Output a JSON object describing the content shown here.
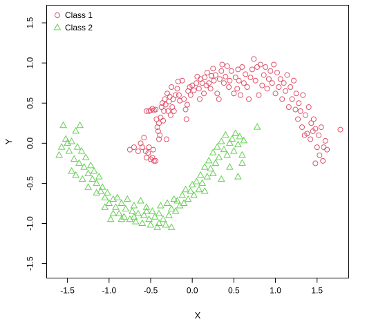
{
  "chart_data": {
    "type": "scatter",
    "xlabel": "X",
    "ylabel": "Y",
    "xlim": [
      -1.75,
      1.88
    ],
    "ylim": [
      -1.68,
      1.72
    ],
    "xticks": [
      -1.5,
      -1.0,
      -0.5,
      0.0,
      0.5,
      1.0,
      1.5
    ],
    "xtick_labels": [
      "-1.5",
      "-1.0",
      "-0.5",
      "0.0",
      "0.5",
      "1.0",
      "1.5"
    ],
    "yticks": [
      -1.5,
      -1.0,
      -0.5,
      0.0,
      0.5,
      1.0,
      1.5
    ],
    "ytick_labels": [
      "-1.5",
      "-1.0",
      "-0.5",
      "0.0",
      "0.5",
      "1.0",
      "1.5"
    ],
    "grid": false,
    "legend_position": "top-left",
    "series": [
      {
        "name": "Class 1",
        "marker": "circle",
        "color": "#DF536B",
        "points": [
          [
            -0.75,
            -0.08
          ],
          [
            -0.7,
            -0.05
          ],
          [
            -0.65,
            -0.1
          ],
          [
            -0.62,
            0.0
          ],
          [
            -0.6,
            -0.05
          ],
          [
            -0.58,
            0.07
          ],
          [
            -0.56,
            -0.1
          ],
          [
            -0.55,
            -0.18
          ],
          [
            -0.53,
            -0.12
          ],
          [
            -0.52,
            -0.05
          ],
          [
            -0.5,
            -0.2
          ],
          [
            -0.48,
            -0.18
          ],
          [
            -0.47,
            -0.08
          ],
          [
            -0.46,
            -0.22
          ],
          [
            -0.44,
            -0.22
          ],
          [
            -0.55,
            0.4
          ],
          [
            -0.52,
            0.4
          ],
          [
            -0.5,
            0.41
          ],
          [
            -0.48,
            0.43
          ],
          [
            -0.46,
            0.41
          ],
          [
            -0.44,
            0.42
          ],
          [
            -0.43,
            0.3
          ],
          [
            -0.42,
            0.2
          ],
          [
            -0.41,
            0.15
          ],
          [
            -0.4,
            0.25
          ],
          [
            -0.4,
            0.05
          ],
          [
            -0.39,
            0.1
          ],
          [
            -0.38,
            0.32
          ],
          [
            -0.37,
            0.45
          ],
          [
            -0.36,
            0.5
          ],
          [
            -0.35,
            0.28
          ],
          [
            -0.34,
            0.4
          ],
          [
            -0.33,
            0.55
          ],
          [
            -0.32,
            0.48
          ],
          [
            -0.31,
            0.05
          ],
          [
            -0.3,
            0.62
          ],
          [
            -0.29,
            0.4
          ],
          [
            -0.28,
            0.52
          ],
          [
            -0.27,
            0.58
          ],
          [
            -0.26,
            0.35
          ],
          [
            -0.25,
            0.7
          ],
          [
            -0.24,
            0.45
          ],
          [
            -0.23,
            0.55
          ],
          [
            -0.22,
            0.4
          ],
          [
            -0.2,
            0.6
          ],
          [
            -0.18,
            0.68
          ],
          [
            -0.17,
            0.77
          ],
          [
            -0.16,
            0.6
          ],
          [
            -0.15,
            0.53
          ],
          [
            -0.12,
            0.78
          ],
          [
            -0.1,
            0.55
          ],
          [
            -0.08,
            0.42
          ],
          [
            -0.07,
            0.3
          ],
          [
            -0.06,
            0.48
          ],
          [
            -0.05,
            0.65
          ],
          [
            -0.03,
            0.7
          ],
          [
            -0.02,
            0.6
          ],
          [
            0.0,
            0.72
          ],
          [
            0.02,
            0.66
          ],
          [
            0.05,
            0.75
          ],
          [
            0.06,
            0.83
          ],
          [
            0.08,
            0.68
          ],
          [
            0.09,
            0.55
          ],
          [
            0.1,
            0.8
          ],
          [
            0.12,
            0.75
          ],
          [
            0.14,
            0.62
          ],
          [
            0.15,
            0.82
          ],
          [
            0.17,
            0.72
          ],
          [
            0.18,
            0.88
          ],
          [
            0.2,
            0.75
          ],
          [
            0.22,
            0.68
          ],
          [
            0.23,
            0.84
          ],
          [
            0.25,
            0.93
          ],
          [
            0.26,
            0.78
          ],
          [
            0.28,
            0.85
          ],
          [
            0.3,
            0.62
          ],
          [
            0.32,
            0.55
          ],
          [
            0.33,
            0.8
          ],
          [
            0.35,
            0.9
          ],
          [
            0.36,
            0.98
          ],
          [
            0.38,
            0.75
          ],
          [
            0.4,
            0.83
          ],
          [
            0.42,
            0.96
          ],
          [
            0.44,
            0.7
          ],
          [
            0.45,
            0.78
          ],
          [
            0.47,
            0.9
          ],
          [
            0.5,
            0.62
          ],
          [
            0.52,
            0.82
          ],
          [
            0.54,
            0.68
          ],
          [
            0.55,
            0.92
          ],
          [
            0.56,
            0.78
          ],
          [
            0.58,
            0.6
          ],
          [
            0.6,
            0.95
          ],
          [
            0.62,
            0.75
          ],
          [
            0.64,
            0.86
          ],
          [
            0.66,
            0.7
          ],
          [
            0.68,
            0.55
          ],
          [
            0.7,
            0.82
          ],
          [
            0.72,
            0.92
          ],
          [
            0.74,
            1.05
          ],
          [
            0.76,
            0.78
          ],
          [
            0.78,
            0.95
          ],
          [
            0.8,
            0.6
          ],
          [
            0.82,
            0.98
          ],
          [
            0.84,
            0.72
          ],
          [
            0.86,
            0.85
          ],
          [
            0.88,
            0.95
          ],
          [
            0.9,
            0.68
          ],
          [
            0.92,
            0.8
          ],
          [
            0.94,
            0.9
          ],
          [
            0.96,
            0.75
          ],
          [
            0.98,
            0.98
          ],
          [
            1.0,
            0.62
          ],
          [
            1.02,
            0.88
          ],
          [
            1.04,
            0.7
          ],
          [
            1.06,
            0.8
          ],
          [
            1.08,
            0.55
          ],
          [
            1.1,
            0.75
          ],
          [
            1.12,
            0.65
          ],
          [
            1.14,
            0.85
          ],
          [
            1.16,
            0.45
          ],
          [
            1.18,
            0.7
          ],
          [
            1.2,
            0.55
          ],
          [
            1.22,
            0.78
          ],
          [
            1.24,
            0.42
          ],
          [
            1.25,
            0.62
          ],
          [
            1.27,
            0.3
          ],
          [
            1.28,
            0.5
          ],
          [
            1.3,
            0.4
          ],
          [
            1.32,
            0.2
          ],
          [
            1.33,
            0.6
          ],
          [
            1.35,
            0.1
          ],
          [
            1.36,
            0.35
          ],
          [
            1.38,
            0.12
          ],
          [
            1.4,
            0.45
          ],
          [
            1.42,
            0.05
          ],
          [
            1.43,
            0.25
          ],
          [
            1.45,
            0.15
          ],
          [
            1.46,
            0.3
          ],
          [
            1.48,
            0.18
          ],
          [
            1.5,
            -0.05
          ],
          [
            1.52,
            0.1
          ],
          [
            1.53,
            -0.15
          ],
          [
            1.55,
            0.2
          ],
          [
            1.57,
            -0.22
          ],
          [
            1.58,
            -0.05
          ],
          [
            1.6,
            0.03
          ],
          [
            1.62,
            -0.08
          ],
          [
            1.78,
            0.17
          ],
          [
            1.48,
            -0.25
          ]
        ]
      },
      {
        "name": "Class 2",
        "marker": "triangle",
        "color": "#61D04F",
        "points": [
          [
            -1.55,
            0.22
          ],
          [
            -1.52,
            0.05
          ],
          [
            -1.5,
            0.0
          ],
          [
            -1.48,
            -0.1
          ],
          [
            -1.45,
            0.02
          ],
          [
            -1.42,
            -0.2
          ],
          [
            -1.4,
            0.15
          ],
          [
            -1.38,
            -0.05
          ],
          [
            -1.36,
            -0.25
          ],
          [
            -1.35,
            0.22
          ],
          [
            -1.33,
            -0.1
          ],
          [
            -1.3,
            -0.3
          ],
          [
            -1.28,
            -0.18
          ],
          [
            -1.25,
            -0.38
          ],
          [
            -1.22,
            -0.28
          ],
          [
            -1.2,
            -0.45
          ],
          [
            -1.18,
            -0.35
          ],
          [
            -1.15,
            -0.5
          ],
          [
            -1.12,
            -0.42
          ],
          [
            -1.1,
            -0.6
          ],
          [
            -1.08,
            -0.55
          ],
          [
            -1.05,
            -0.68
          ],
          [
            -1.02,
            -0.62
          ],
          [
            -1.0,
            -0.75
          ],
          [
            -0.98,
            -0.95
          ],
          [
            -0.95,
            -0.7
          ],
          [
            -0.92,
            -0.8
          ],
          [
            -0.9,
            -0.68
          ],
          [
            -0.88,
            -0.88
          ],
          [
            -0.85,
            -0.75
          ],
          [
            -0.82,
            -0.92
          ],
          [
            -0.8,
            -0.82
          ],
          [
            -0.78,
            -0.7
          ],
          [
            -0.75,
            -0.95
          ],
          [
            -0.72,
            -0.85
          ],
          [
            -0.7,
            -0.78
          ],
          [
            -0.68,
            -0.98
          ],
          [
            -0.65,
            -0.88
          ],
          [
            -0.62,
            -0.72
          ],
          [
            -0.6,
            -1.0
          ],
          [
            -0.58,
            -0.9
          ],
          [
            -0.55,
            -0.8
          ],
          [
            -0.52,
            -0.95
          ],
          [
            -0.5,
            -1.02
          ],
          [
            -0.48,
            -0.85
          ],
          [
            -0.45,
            -0.92
          ],
          [
            -0.42,
            -1.05
          ],
          [
            -0.4,
            -0.88
          ],
          [
            -0.38,
            -0.78
          ],
          [
            -0.35,
            -0.95
          ],
          [
            -0.32,
            -1.02
          ],
          [
            -0.3,
            -0.75
          ],
          [
            -0.28,
            -0.9
          ],
          [
            -0.25,
            -0.82
          ],
          [
            -0.22,
            -0.7
          ],
          [
            -0.2,
            -0.85
          ],
          [
            -0.18,
            -0.72
          ],
          [
            -0.15,
            -0.78
          ],
          [
            -0.12,
            -0.65
          ],
          [
            -0.1,
            -0.75
          ],
          [
            -0.08,
            -0.58
          ],
          [
            -0.05,
            -0.7
          ],
          [
            -0.02,
            -0.6
          ],
          [
            0.0,
            -0.52
          ],
          [
            0.02,
            -0.65
          ],
          [
            0.05,
            -0.48
          ],
          [
            0.08,
            -0.58
          ],
          [
            0.1,
            -0.4
          ],
          [
            0.12,
            -0.5
          ],
          [
            0.15,
            -0.3
          ],
          [
            0.18,
            -0.42
          ],
          [
            0.2,
            -0.22
          ],
          [
            0.22,
            -0.32
          ],
          [
            0.25,
            -0.12
          ],
          [
            0.28,
            -0.25
          ],
          [
            0.3,
            -0.05
          ],
          [
            0.32,
            -0.18
          ],
          [
            0.35,
            0.02
          ],
          [
            0.38,
            -0.08
          ],
          [
            0.4,
            0.1
          ],
          [
            0.42,
            -0.15
          ],
          [
            0.45,
            0.0
          ],
          [
            0.48,
            0.05
          ],
          [
            0.5,
            -0.1
          ],
          [
            0.52,
            0.12
          ],
          [
            0.55,
            -0.02
          ],
          [
            0.57,
            0.08
          ],
          [
            0.6,
            -0.25
          ],
          [
            0.62,
            0.03
          ],
          [
            0.78,
            0.2
          ],
          [
            -1.6,
            -0.15
          ],
          [
            -1.57,
            -0.05
          ],
          [
            -1.45,
            -0.35
          ],
          [
            -1.4,
            -0.4
          ],
          [
            -1.32,
            -0.45
          ],
          [
            -1.25,
            -0.55
          ],
          [
            -1.15,
            -0.62
          ],
          [
            -1.05,
            -0.8
          ],
          [
            -0.95,
            -0.88
          ],
          [
            -0.85,
            -0.95
          ],
          [
            -0.7,
            -0.92
          ],
          [
            -0.55,
            -0.85
          ],
          [
            -0.4,
            -1.0
          ],
          [
            -0.25,
            -1.05
          ],
          [
            0.15,
            -0.6
          ],
          [
            0.25,
            -0.38
          ],
          [
            0.35,
            -0.45
          ],
          [
            0.45,
            -0.3
          ],
          [
            0.55,
            -0.42
          ],
          [
            0.6,
            -0.15
          ]
        ]
      }
    ]
  }
}
